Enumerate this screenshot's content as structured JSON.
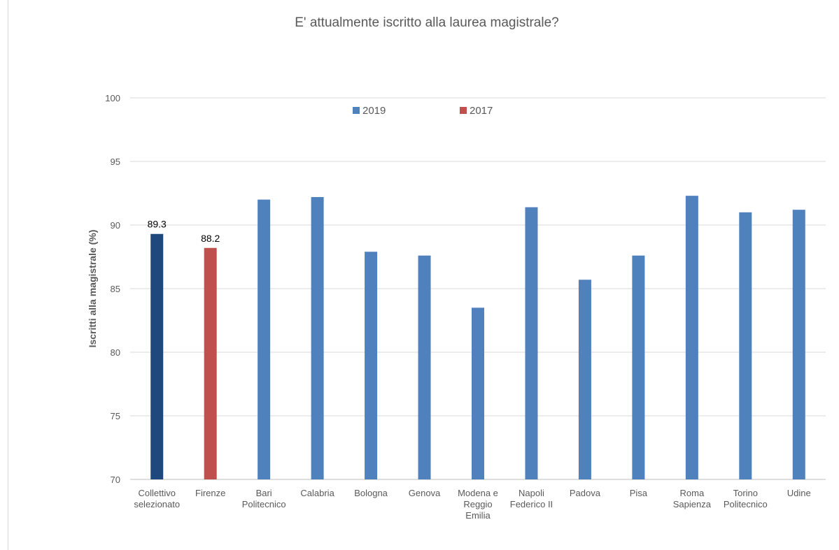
{
  "chart_data": {
    "type": "bar",
    "title": "E' attualmente iscritto alla laurea magistrale?",
    "ylabel": "Iscritti alla magistrale (%)",
    "xlabel": "",
    "ylim": [
      70,
      100
    ],
    "yticks": [
      70,
      75,
      80,
      85,
      90,
      95,
      100
    ],
    "grid": true,
    "legend_position": "top-center",
    "legend": [
      {
        "name": "2019",
        "color": "#4f81bd"
      },
      {
        "name": "2017",
        "color": "#c0504d"
      }
    ],
    "categories": [
      [
        "Collettivo",
        "selezionato"
      ],
      [
        "Firenze"
      ],
      [
        "Bari",
        "Politecnico"
      ],
      [
        "Calabria"
      ],
      [
        "Bologna"
      ],
      [
        "Genova"
      ],
      [
        "Modena e",
        "Reggio",
        "Emilia"
      ],
      [
        "Napoli",
        "Federico II"
      ],
      [
        "Padova"
      ],
      [
        "Pisa"
      ],
      [
        "Roma",
        "Sapienza"
      ],
      [
        "Torino",
        "Politecnico"
      ],
      [
        "Udine"
      ]
    ],
    "values": [
      89.3,
      88.2,
      92.0,
      92.2,
      87.9,
      87.6,
      83.5,
      91.4,
      85.7,
      87.6,
      92.3,
      91.0,
      91.2
    ],
    "colors": [
      "#1f497d",
      "#c0504d",
      "#4f81bd",
      "#4f81bd",
      "#4f81bd",
      "#4f81bd",
      "#4f81bd",
      "#4f81bd",
      "#4f81bd",
      "#4f81bd",
      "#4f81bd",
      "#4f81bd",
      "#4f81bd"
    ],
    "data_labels": [
      "89.3",
      "88.2",
      "",
      "",
      "",
      "",
      "",
      "",
      "",
      "",
      "",
      "",
      ""
    ]
  }
}
